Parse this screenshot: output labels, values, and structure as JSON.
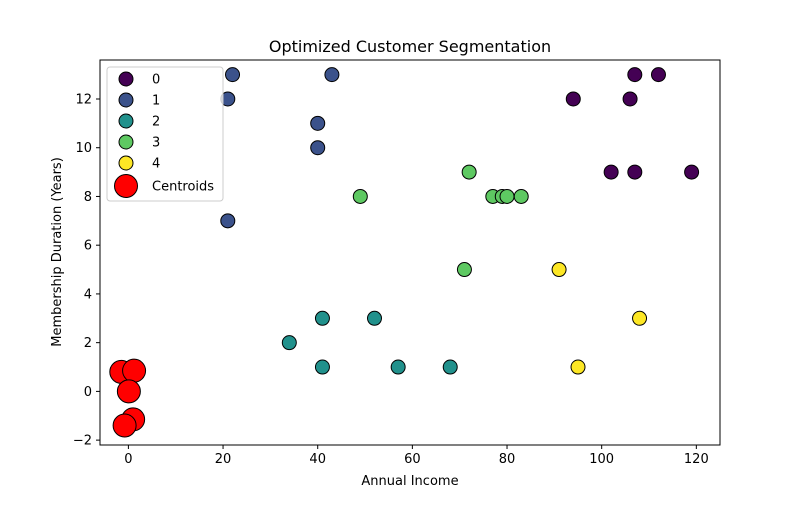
{
  "chart_data": {
    "type": "scatter",
    "title": "Optimized Customer Segmentation",
    "xlabel": "Annual Income",
    "ylabel": "Membership Duration (Years)",
    "xlim": [
      -6,
      125
    ],
    "ylim": [
      -2.2,
      13.6
    ],
    "x_ticks": [
      0,
      20,
      40,
      60,
      80,
      100,
      120
    ],
    "y_ticks": [
      -2,
      0,
      2,
      4,
      6,
      8,
      10,
      12
    ],
    "grid": false,
    "legend_placement": "top-left",
    "series": [
      {
        "name": "0",
        "color": "#440154",
        "points": [
          [
            94,
            12
          ],
          [
            106,
            12
          ],
          [
            107,
            13
          ],
          [
            112,
            13
          ],
          [
            102,
            9
          ],
          [
            107,
            9
          ],
          [
            119,
            9
          ]
        ]
      },
      {
        "name": "1",
        "color": "#3b528b",
        "points": [
          [
            22,
            13
          ],
          [
            43,
            13
          ],
          [
            21,
            12
          ],
          [
            40,
            11
          ],
          [
            40,
            10
          ],
          [
            21,
            7
          ]
        ]
      },
      {
        "name": "2",
        "color": "#21918c",
        "points": [
          [
            34,
            2
          ],
          [
            41,
            3
          ],
          [
            52,
            3
          ],
          [
            41,
            1
          ],
          [
            57,
            1
          ],
          [
            68,
            1
          ]
        ]
      },
      {
        "name": "3",
        "color": "#5ec962",
        "points": [
          [
            72,
            9
          ],
          [
            49,
            8
          ],
          [
            77,
            8
          ],
          [
            79,
            8
          ],
          [
            80,
            8
          ],
          [
            83,
            8
          ],
          [
            71,
            5
          ]
        ]
      },
      {
        "name": "4",
        "color": "#fde725",
        "points": [
          [
            91,
            5
          ],
          [
            108,
            3
          ],
          [
            95,
            1
          ]
        ]
      },
      {
        "name": "Centroids",
        "color": "#ff0000",
        "points": [
          [
            -1.5,
            0.8
          ],
          [
            1.2,
            0.85
          ],
          [
            0.1,
            0.0
          ],
          [
            1.0,
            -1.15
          ],
          [
            -0.8,
            -1.4
          ]
        ]
      }
    ]
  }
}
